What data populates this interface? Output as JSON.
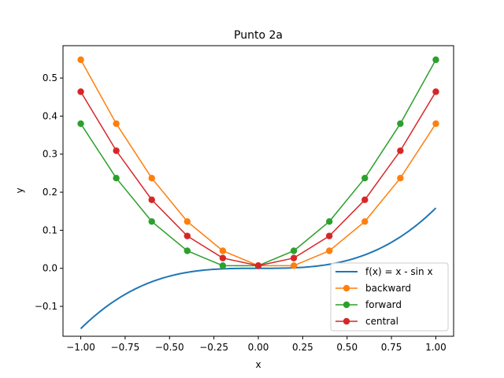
{
  "chart_data": {
    "type": "line",
    "title": "Punto 2a",
    "xlabel": "x",
    "ylabel": "y",
    "xlim": [
      -1.1,
      1.1
    ],
    "ylim": [
      -0.1785,
      0.585
    ],
    "xticks": [
      -1.0,
      -0.75,
      -0.5,
      -0.25,
      0.0,
      0.25,
      0.5,
      0.75,
      1.0
    ],
    "xtick_labels": [
      "−1.00",
      "−0.75",
      "−0.50",
      "−0.25",
      "0.00",
      "0.25",
      "0.50",
      "0.75",
      "1.00"
    ],
    "yticks": [
      -0.1,
      0.0,
      0.1,
      0.2,
      0.3,
      0.4,
      0.5
    ],
    "ytick_labels": [
      "−0.1",
      "0.0",
      "0.1",
      "0.2",
      "0.3",
      "0.4",
      "0.5"
    ],
    "grid": false,
    "legend_position": "lower-right",
    "x": [
      -1.0,
      -0.8,
      -0.6,
      -0.4,
      -0.2,
      0.0,
      0.2,
      0.4,
      0.6,
      0.8,
      1.0
    ],
    "series": [
      {
        "name": "f(x) = x - sin x",
        "color": "#1f77b4",
        "marker": false,
        "function": "x - sin(x)"
      },
      {
        "name": "backward",
        "color": "#ff7f0e",
        "marker": true,
        "values": [
          0.548,
          0.38,
          0.237,
          0.123,
          0.046,
          0.007,
          0.007,
          0.046,
          0.123,
          0.237,
          0.38
        ]
      },
      {
        "name": "forward",
        "color": "#2ca02c",
        "marker": true,
        "values": [
          0.38,
          0.237,
          0.123,
          0.046,
          0.007,
          0.007,
          0.046,
          0.123,
          0.237,
          0.38,
          0.548
        ]
      },
      {
        "name": "central",
        "color": "#d62728",
        "marker": true,
        "values": [
          0.464,
          0.309,
          0.18,
          0.085,
          0.027,
          0.007,
          0.027,
          0.085,
          0.18,
          0.309,
          0.464
        ]
      }
    ]
  }
}
